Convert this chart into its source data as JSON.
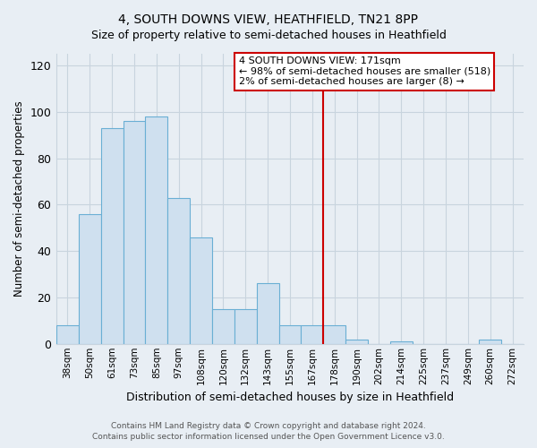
{
  "title": "4, SOUTH DOWNS VIEW, HEATHFIELD, TN21 8PP",
  "subtitle": "Size of property relative to semi-detached houses in Heathfield",
  "xlabel": "Distribution of semi-detached houses by size in Heathfield",
  "ylabel": "Number of semi-detached properties",
  "bar_labels": [
    "38sqm",
    "50sqm",
    "61sqm",
    "73sqm",
    "85sqm",
    "97sqm",
    "108sqm",
    "120sqm",
    "132sqm",
    "143sqm",
    "155sqm",
    "167sqm",
    "178sqm",
    "190sqm",
    "202sqm",
    "214sqm",
    "225sqm",
    "237sqm",
    "249sqm",
    "260sqm",
    "272sqm"
  ],
  "bar_values": [
    8,
    56,
    93,
    96,
    98,
    63,
    46,
    15,
    15,
    26,
    8,
    8,
    8,
    2,
    0,
    1,
    0,
    0,
    0,
    2,
    0
  ],
  "bar_color": "#cfe0ef",
  "bar_edge_color": "#6aafd4",
  "vline_x_label": "178sqm",
  "vline_color": "#cc0000",
  "annotation_title": "4 SOUTH DOWNS VIEW: 171sqm",
  "annotation_line1": "← 98% of semi-detached houses are smaller (518)",
  "annotation_line2": "2% of semi-detached houses are larger (8) →",
  "ylim": [
    0,
    125
  ],
  "yticks": [
    0,
    20,
    40,
    60,
    80,
    100,
    120
  ],
  "footer_line1": "Contains HM Land Registry data © Crown copyright and database right 2024.",
  "footer_line2": "Contains public sector information licensed under the Open Government Licence v3.0.",
  "plot_bg_color": "#e8eef4",
  "fig_bg_color": "#e8eef4",
  "grid_color": "#c8d4de",
  "title_fontsize": 10,
  "subtitle_fontsize": 9
}
